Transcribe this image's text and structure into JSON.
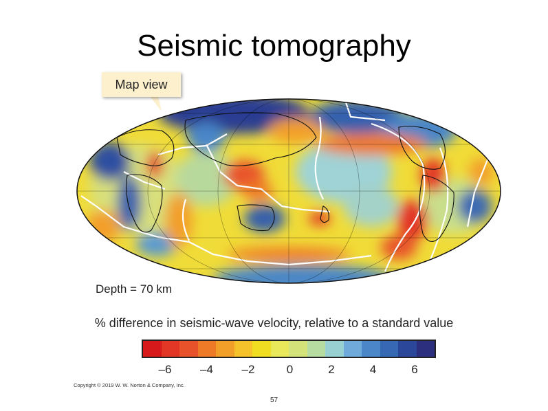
{
  "slide": {
    "title": "Seismic tomography",
    "callout": "Map view",
    "depth_label": "Depth = 70 km",
    "axis_title": "% difference in seismic-wave velocity, relative to a standard value",
    "copyright": "Copyright © 2019 W. W. Norton & Company, Inc.",
    "page_number": "57"
  },
  "colorbar": {
    "ticks": [
      "–6",
      "–4",
      "–2",
      "0",
      "2",
      "4",
      "6"
    ],
    "colors": [
      "#d7191c",
      "#e23626",
      "#e8522a",
      "#ee7a28",
      "#f29f2a",
      "#f5c22b",
      "#f0dc20",
      "#e9e85a",
      "#d4e27a",
      "#b6dca2",
      "#98cfd1",
      "#6faadb",
      "#4a86c8",
      "#3768b4",
      "#2a479a",
      "#2b2f7d"
    ]
  }
}
